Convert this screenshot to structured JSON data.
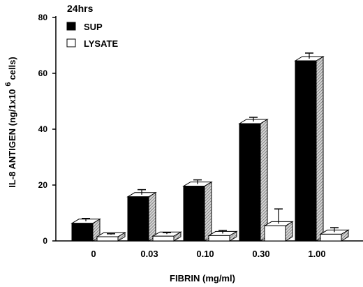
{
  "chart_data": {
    "type": "bar",
    "title": "24hrs",
    "xlabel": "FIBRIN (mg/ml)",
    "ylabel_main": "IL-8 ANTIGEN (ng/1x10",
    "ylabel_sup": "6",
    "ylabel_tail": "cells)",
    "categories": [
      "0",
      "0.03",
      "0.10",
      "0.30",
      "1.00"
    ],
    "ylim": [
      0,
      80
    ],
    "yticks": [
      "0",
      "20",
      "40",
      "60",
      "80"
    ],
    "series": [
      {
        "name": "SUP",
        "values": [
          6.3,
          15.8,
          19.6,
          42,
          64.5
        ],
        "errors": [
          1.0,
          1.8,
          1.5,
          1.5,
          2.0
        ],
        "color": "#000000"
      },
      {
        "name": "LYSATE",
        "values": [
          1.5,
          1.7,
          1.9,
          5.4,
          2.4
        ],
        "errors": [
          0.3,
          0.5,
          1.1,
          5.3,
          1.6
        ],
        "color": "#ffffff"
      }
    ],
    "legend_position": "top-left",
    "grid": false
  }
}
